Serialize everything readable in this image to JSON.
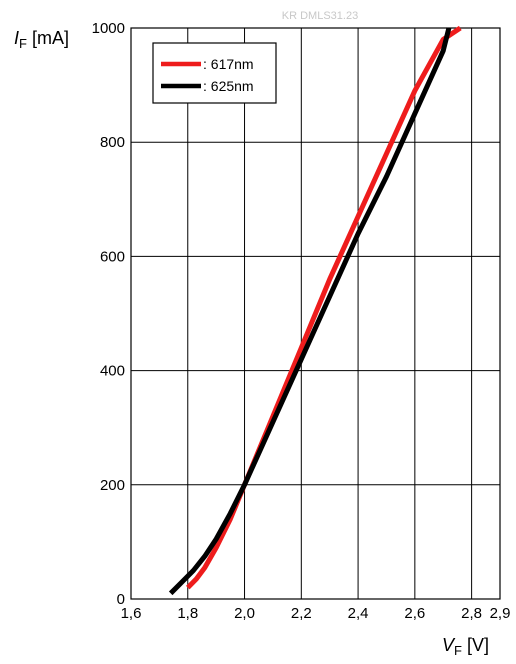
{
  "watermark": "KR DMLS31.23",
  "chart_data": {
    "type": "line",
    "title": "",
    "ylabel": {
      "main": "I",
      "sub": "F",
      "unit": " [mA]"
    },
    "xlabel": {
      "main": "V",
      "sub": "F",
      "unit": " [V]"
    },
    "xlim": [
      1.6,
      2.9
    ],
    "ylim": [
      0,
      1000
    ],
    "grid": true,
    "legend_position": "top-left",
    "xticks": [
      1.6,
      1.8,
      2.0,
      2.2,
      2.4,
      2.6,
      2.8,
      2.9
    ],
    "xtick_labels": [
      "1,6",
      "1,8",
      "2,0",
      "2,2",
      "2,4",
      "2,6",
      "2,8",
      "2,9"
    ],
    "yticks": [
      0,
      200,
      400,
      600,
      800,
      1000
    ],
    "ytick_labels": [
      "0",
      "200",
      "400",
      "600",
      "800",
      "1000"
    ],
    "series": [
      {
        "name": ": 617nm",
        "color": "#ee1c1c",
        "points": [
          [
            1.8,
            20
          ],
          [
            1.83,
            35
          ],
          [
            1.86,
            55
          ],
          [
            1.9,
            90
          ],
          [
            1.95,
            140
          ],
          [
            2.0,
            200
          ],
          [
            2.1,
            320
          ],
          [
            2.2,
            440
          ],
          [
            2.3,
            560
          ],
          [
            2.4,
            670
          ],
          [
            2.5,
            780
          ],
          [
            2.6,
            890
          ],
          [
            2.7,
            980
          ],
          [
            2.76,
            1000
          ]
        ]
      },
      {
        "name": ": 625nm",
        "color": "#000000",
        "points": [
          [
            1.74,
            10
          ],
          [
            1.78,
            30
          ],
          [
            1.82,
            50
          ],
          [
            1.86,
            75
          ],
          [
            1.9,
            105
          ],
          [
            1.95,
            150
          ],
          [
            2.0,
            200
          ],
          [
            2.1,
            310
          ],
          [
            2.2,
            420
          ],
          [
            2.3,
            530
          ],
          [
            2.4,
            640
          ],
          [
            2.5,
            740
          ],
          [
            2.6,
            850
          ],
          [
            2.7,
            960
          ],
          [
            2.72,
            1000
          ]
        ]
      }
    ]
  }
}
